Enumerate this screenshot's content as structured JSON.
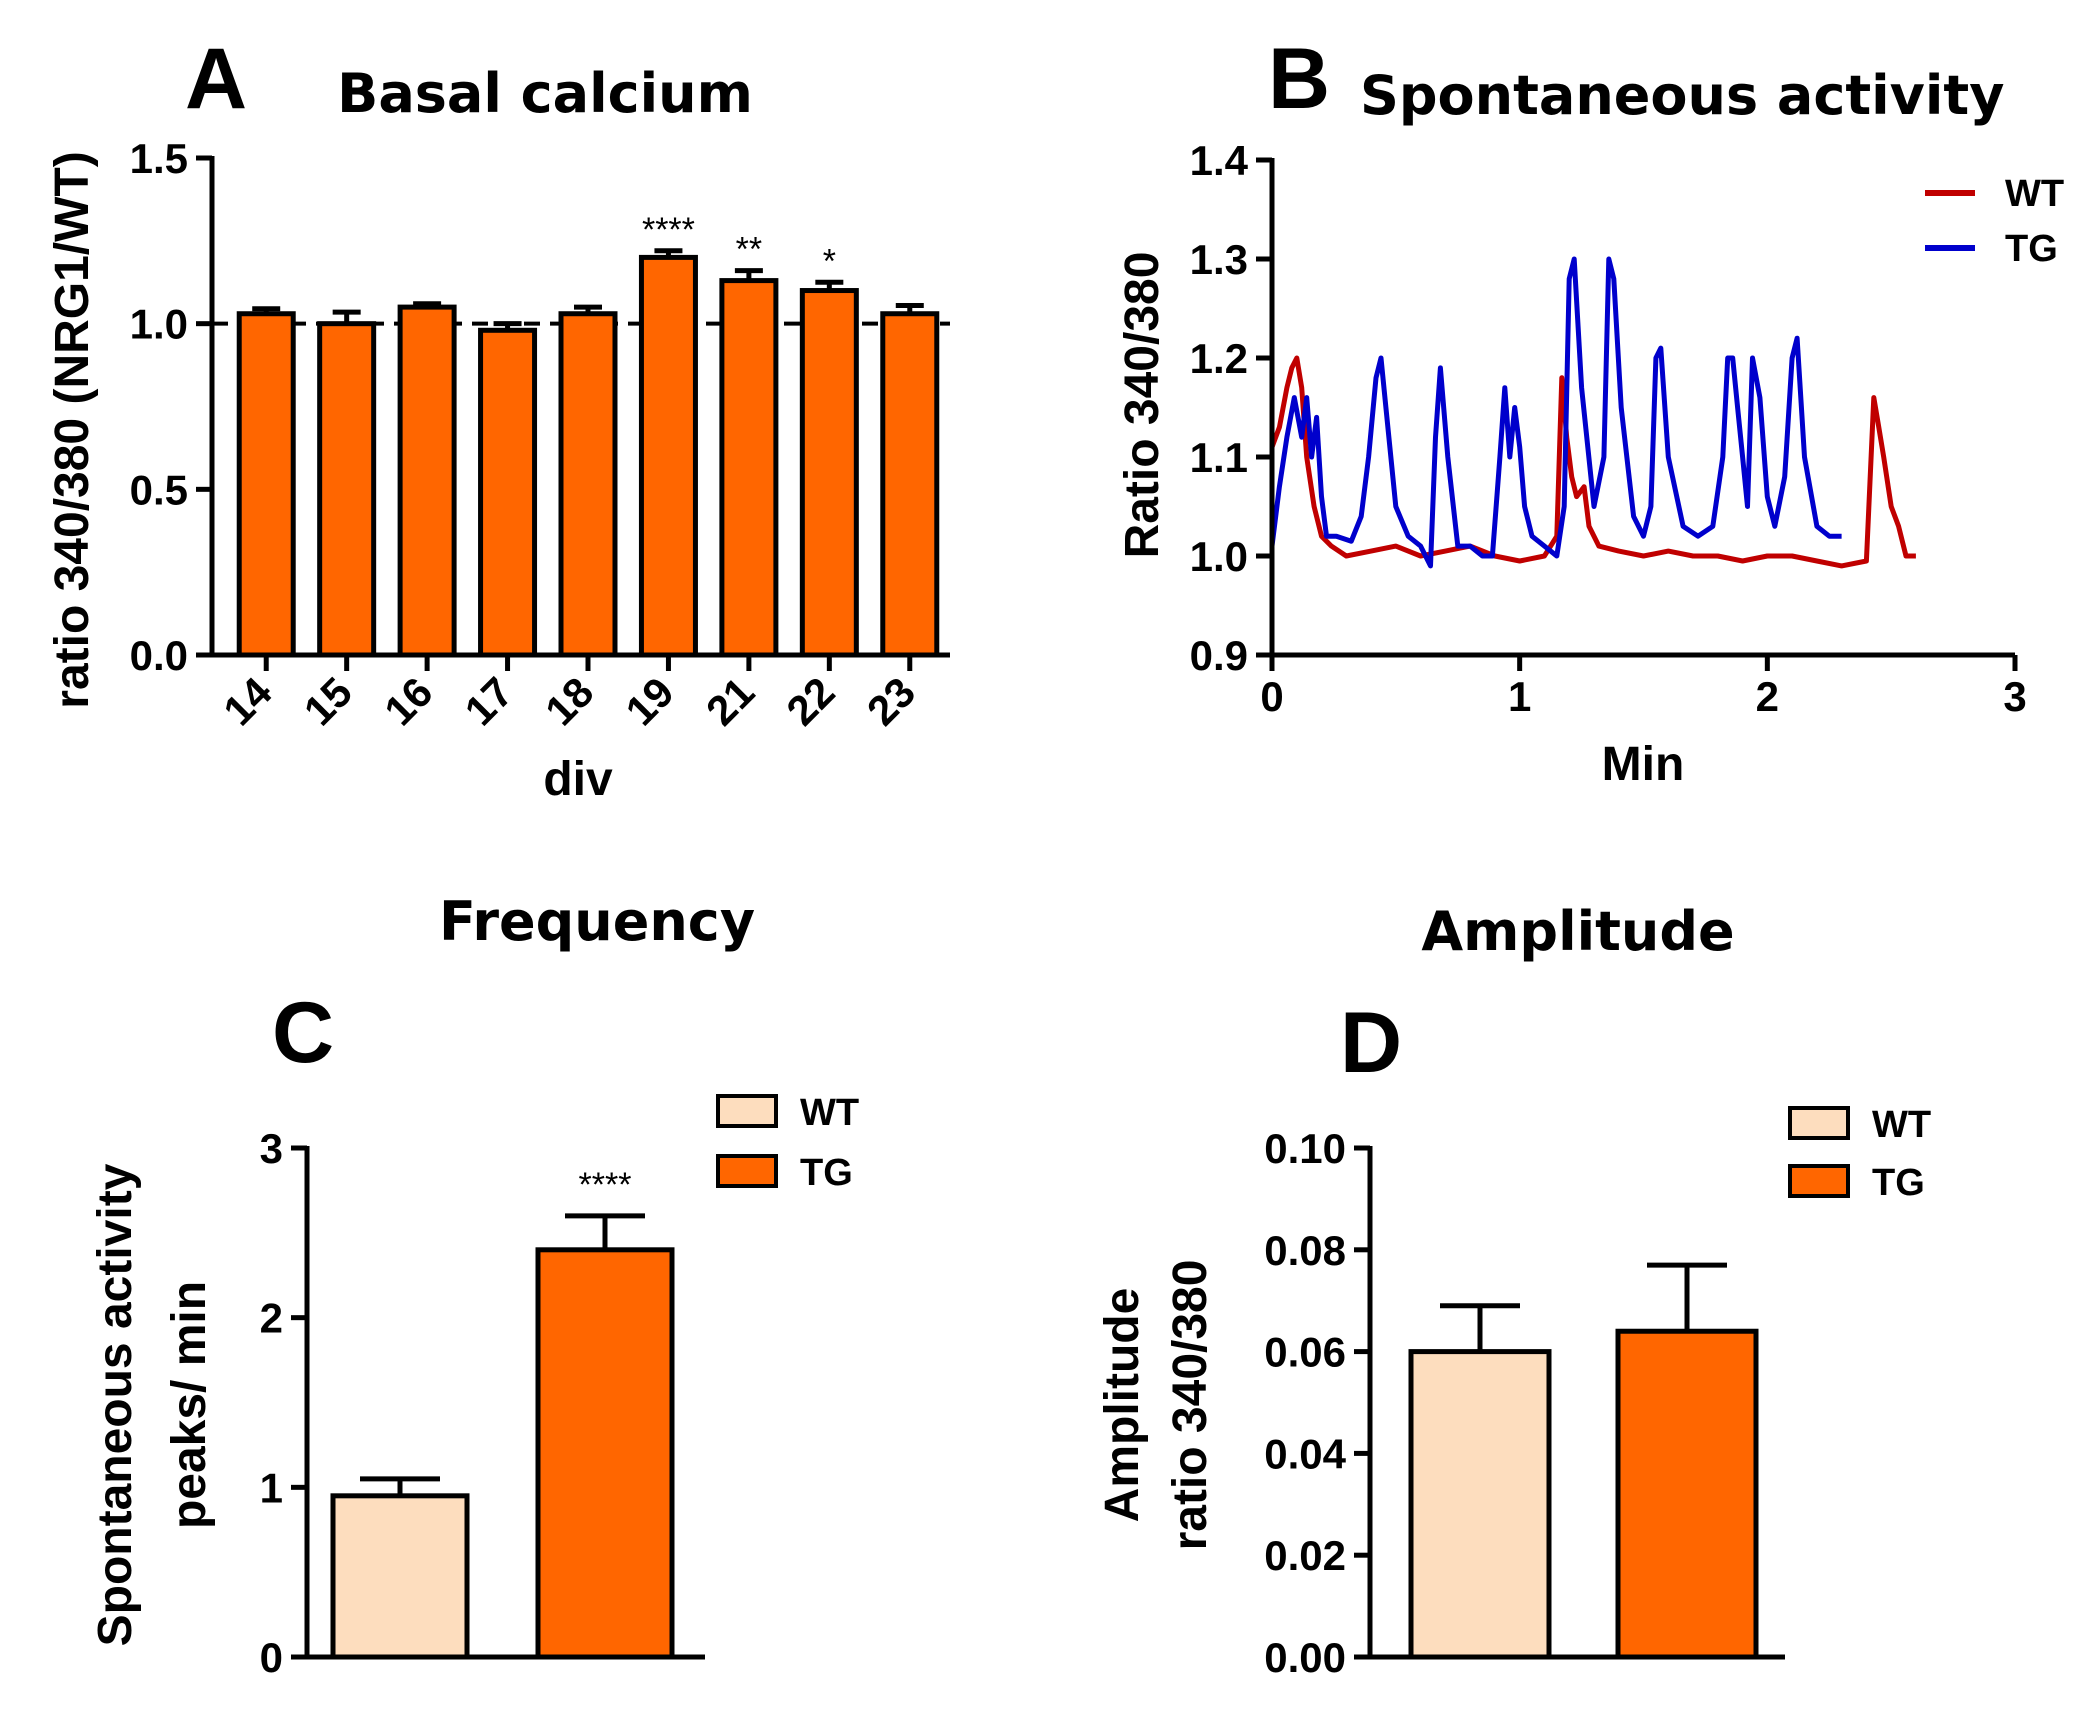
{
  "colors": {
    "wt_bar": "#FDDDBE",
    "tg_bar": "#FF6600",
    "wt_line": "#C00000",
    "tg_line": "#0000CC"
  },
  "chart_data": [
    {
      "panel": "A",
      "type": "bar",
      "title": "Basal calcium",
      "xlabel": "div",
      "ylabel": "ratio 340/380 (NRG1/WT)",
      "categories": [
        "14",
        "15",
        "16",
        "17",
        "18",
        "19",
        "21",
        "22",
        "23"
      ],
      "values": [
        1.03,
        1.0,
        1.05,
        0.98,
        1.03,
        1.2,
        1.13,
        1.1,
        1.03
      ],
      "errors": [
        0.015,
        0.035,
        0.01,
        0.02,
        0.02,
        0.02,
        0.03,
        0.025,
        0.025
      ],
      "significance": [
        "",
        "",
        "",
        "",
        "",
        "****",
        "**",
        "*",
        ""
      ],
      "ylim": [
        0,
        1.5
      ],
      "yticks": [
        "0.0",
        "0.5",
        "1.0",
        "1.5"
      ],
      "reference_line": 1.0
    },
    {
      "panel": "B",
      "type": "line",
      "title": "Spontaneous activity",
      "xlabel": "Min",
      "ylabel": "Ratio 340/380",
      "xlim": [
        0,
        3
      ],
      "ylim": [
        0.9,
        1.4
      ],
      "xticks": [
        "0",
        "1",
        "2",
        "3"
      ],
      "yticks": [
        "0.9",
        "1.0",
        "1.1",
        "1.2",
        "1.3",
        "1.4"
      ],
      "legend_position": "top-right",
      "series": [
        {
          "name": "WT",
          "x": [
            0,
            0.03,
            0.06,
            0.08,
            0.1,
            0.12,
            0.14,
            0.17,
            0.2,
            0.24,
            0.3,
            0.4,
            0.5,
            0.6,
            0.7,
            0.8,
            0.9,
            1.0,
            1.1,
            1.15,
            1.17,
            1.19,
            1.21,
            1.23,
            1.26,
            1.28,
            1.32,
            1.4,
            1.5,
            1.6,
            1.7,
            1.8,
            1.9,
            2.0,
            2.1,
            2.2,
            2.3,
            2.4,
            2.43,
            2.45,
            2.47,
            2.5,
            2.53,
            2.56,
            2.6
          ],
          "y": [
            1.11,
            1.13,
            1.17,
            1.19,
            1.2,
            1.17,
            1.1,
            1.05,
            1.02,
            1.01,
            1.0,
            1.005,
            1.01,
            1.0,
            1.005,
            1.01,
            1.0,
            0.995,
            1.0,
            1.02,
            1.18,
            1.12,
            1.08,
            1.06,
            1.07,
            1.03,
            1.01,
            1.005,
            1.0,
            1.005,
            1.0,
            1.0,
            0.995,
            1.0,
            1.0,
            0.995,
            0.99,
            0.995,
            1.16,
            1.13,
            1.1,
            1.05,
            1.03,
            1.0,
            1.0
          ]
        },
        {
          "name": "TG",
          "x": [
            0,
            0.03,
            0.06,
            0.09,
            0.12,
            0.14,
            0.16,
            0.18,
            0.2,
            0.22,
            0.26,
            0.32,
            0.36,
            0.39,
            0.42,
            0.44,
            0.46,
            0.5,
            0.55,
            0.6,
            0.64,
            0.66,
            0.68,
            0.71,
            0.75,
            0.8,
            0.85,
            0.89,
            0.92,
            0.94,
            0.96,
            0.98,
            1.0,
            1.02,
            1.05,
            1.1,
            1.15,
            1.18,
            1.2,
            1.22,
            1.25,
            1.3,
            1.34,
            1.36,
            1.38,
            1.41,
            1.46,
            1.5,
            1.53,
            1.55,
            1.57,
            1.6,
            1.66,
            1.72,
            1.78,
            1.82,
            1.84,
            1.86,
            1.88,
            1.9,
            1.92,
            1.94,
            1.97,
            2.0,
            2.03,
            2.07,
            2.1,
            2.12,
            2.15,
            2.2,
            2.25,
            2.3
          ],
          "y": [
            1.01,
            1.07,
            1.12,
            1.16,
            1.12,
            1.16,
            1.1,
            1.14,
            1.06,
            1.02,
            1.02,
            1.015,
            1.04,
            1.1,
            1.18,
            1.2,
            1.15,
            1.05,
            1.02,
            1.01,
            0.99,
            1.12,
            1.19,
            1.1,
            1.01,
            1.01,
            1.0,
            1.0,
            1.1,
            1.17,
            1.1,
            1.15,
            1.11,
            1.05,
            1.02,
            1.01,
            1.0,
            1.05,
            1.28,
            1.3,
            1.17,
            1.05,
            1.1,
            1.3,
            1.28,
            1.15,
            1.04,
            1.02,
            1.05,
            1.2,
            1.21,
            1.1,
            1.03,
            1.02,
            1.03,
            1.1,
            1.2,
            1.2,
            1.15,
            1.1,
            1.05,
            1.2,
            1.16,
            1.06,
            1.03,
            1.08,
            1.2,
            1.22,
            1.1,
            1.03,
            1.02,
            1.02
          ]
        }
      ]
    },
    {
      "panel": "C",
      "type": "bar",
      "title": "Frequency",
      "ylabel": [
        "Spontaneous activity",
        "peaks/ min"
      ],
      "categories": [
        "WT",
        "TG"
      ],
      "values": [
        0.95,
        2.4
      ],
      "errors": [
        0.1,
        0.2
      ],
      "significance": [
        "",
        "****"
      ],
      "ylim": [
        0,
        3
      ],
      "yticks": [
        "0",
        "1",
        "2",
        "3"
      ],
      "legend": [
        "WT",
        "TG"
      ],
      "legend_position": "top-right"
    },
    {
      "panel": "D",
      "type": "bar",
      "title": "Amplitude",
      "ylabel": [
        "Amplitude",
        "ratio 340/380"
      ],
      "categories": [
        "WT",
        "TG"
      ],
      "values": [
        0.06,
        0.064
      ],
      "errors": [
        0.009,
        0.013
      ],
      "significance": [
        "",
        ""
      ],
      "ylim": [
        0,
        0.1
      ],
      "yticks": [
        "0.00",
        "0.02",
        "0.04",
        "0.06",
        "0.08",
        "0.10"
      ],
      "legend": [
        "WT",
        "TG"
      ],
      "legend_position": "top-right"
    }
  ]
}
